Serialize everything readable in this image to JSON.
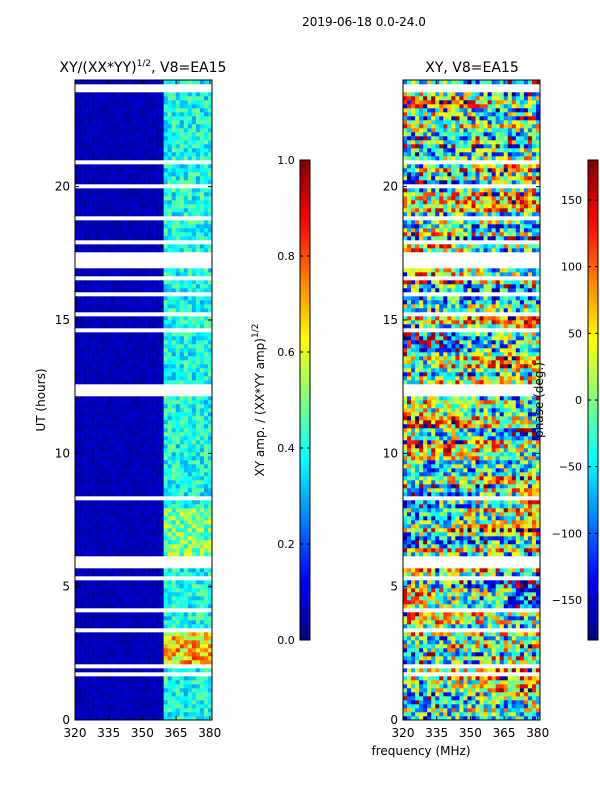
{
  "figure": {
    "suptitle": "2019-06-18 0.0-24.0",
    "xlabel": "frequency (MHz)"
  },
  "chart_data": [
    {
      "type": "heatmap",
      "title_main": "XY/(XX*YY)",
      "title_exp": "1/2",
      "title_suffix": ", V8=EA15",
      "ylabel": "UT (hours)",
      "xlabel": "",
      "xlim": [
        320,
        381
      ],
      "ylim": [
        0,
        24
      ],
      "xticks": [
        320,
        335,
        350,
        365,
        380
      ],
      "yticks": [
        0,
        5,
        10,
        15,
        20
      ],
      "colorbar": {
        "label_main": "XY amp. / (XX*YY amp)",
        "label_exp": "1/2",
        "range": [
          0.0,
          1.0
        ],
        "ticks": [
          "0.0",
          "0.2",
          "0.4",
          "0.6",
          "0.8",
          "1.0"
        ],
        "tick_values": [
          0.0,
          0.2,
          0.4,
          0.6,
          0.8,
          1.0
        ],
        "colormap": "jet"
      },
      "description": "normalized cross-power amplitude vs frequency and time; low (~0.05) below 360 MHz, elevated (~0.3-0.5) in 360-381 MHz band, strongest (~0.6-0.8) around 2-3.4 h"
    },
    {
      "type": "heatmap",
      "title_main": "XY",
      "title_exp": "",
      "title_suffix": ", V8=EA15",
      "ylabel": "",
      "xlabel": "",
      "xlim": [
        320,
        381
      ],
      "ylim": [
        0,
        24
      ],
      "xticks": [
        320,
        335,
        350,
        365,
        380
      ],
      "yticks": [
        0,
        5,
        10,
        15,
        20
      ],
      "colorbar": {
        "label_main": "phase (deg.)",
        "label_exp": "",
        "range": [
          -180,
          180
        ],
        "ticks": [
          "−150",
          "−100",
          "−50",
          "0",
          "50",
          "100",
          "150"
        ],
        "tick_values": [
          -150,
          -100,
          -50,
          0,
          50,
          100,
          150
        ],
        "colormap": "jet"
      },
      "description": "cross-power phase vs frequency and time, varying noisily across the full -180 to 180 deg range"
    }
  ],
  "gaps_hours": [
    [
      0.25,
      0.31
    ],
    [
      1.6,
      1.8
    ],
    [
      1.95,
      2.1
    ],
    [
      3.35,
      3.42
    ],
    [
      3.75,
      3.8
    ],
    [
      4.1,
      4.15
    ],
    [
      4.35,
      4.4
    ],
    [
      5.3,
      5.35
    ],
    [
      5.7,
      6.1
    ],
    [
      6.55,
      6.6
    ],
    [
      7.0,
      7.05
    ],
    [
      8.3,
      8.35
    ],
    [
      8.8,
      8.85
    ],
    [
      9.25,
      9.3
    ],
    [
      10.6,
      10.65
    ],
    [
      11.1,
      11.15
    ],
    [
      12.2,
      12.6
    ],
    [
      14.6,
      14.7
    ],
    [
      15.2,
      15.3
    ],
    [
      15.9,
      16.0
    ],
    [
      16.5,
      16.6
    ],
    [
      17.0,
      17.5
    ],
    [
      17.9,
      17.95
    ],
    [
      18.8,
      18.9
    ],
    [
      19.35,
      19.4
    ],
    [
      20.0,
      20.15
    ],
    [
      20.9,
      20.95
    ],
    [
      21.9,
      21.95
    ],
    [
      22.5,
      22.55
    ],
    [
      23.2,
      23.3
    ],
    [
      23.6,
      23.8
    ]
  ]
}
